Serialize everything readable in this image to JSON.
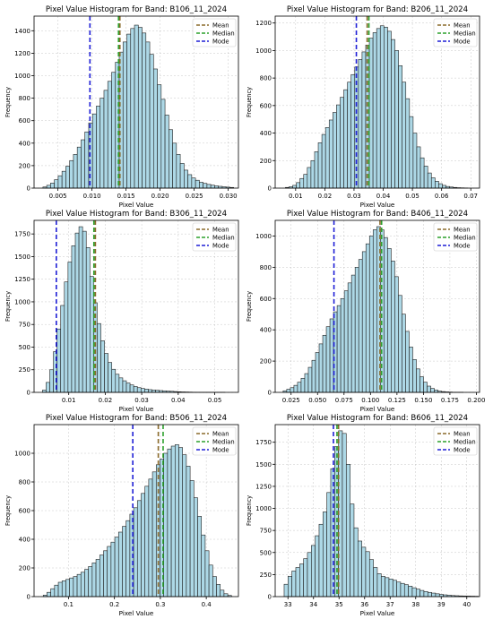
{
  "colors": {
    "bar_fill": "#add8e6",
    "bar_edge": "#1f1f1f",
    "mean": "#d62728",
    "median": "#2ca02c",
    "mode": "#1f1fd6",
    "mean_median_overlap": "#8a6a2a"
  },
  "legend_labels": {
    "mean": "Mean",
    "median": "Median",
    "mode": "Mode"
  },
  "chart_data": [
    {
      "type": "bar",
      "title": "Pixel Value Histogram for Band: B106_11_2024",
      "xlabel": "Pixel Value",
      "ylabel": "Frequency",
      "xlim": [
        0.0015,
        0.0315
      ],
      "ylim": [
        0,
        1530
      ],
      "xticks": [
        0.005,
        0.01,
        0.015,
        0.02,
        0.025,
        0.03
      ],
      "xtick_labels": [
        "0.005",
        "0.010",
        "0.015",
        "0.020",
        "0.025",
        "0.030"
      ],
      "yticks": [
        0,
        200,
        400,
        600,
        800,
        1000,
        1200,
        1400
      ],
      "ytick_labels": [
        "0",
        "200",
        "400",
        "600",
        "800",
        "1000",
        "1200",
        "1400"
      ],
      "bin_start": 0.0028,
      "bin_width": 0.00056,
      "values": [
        10,
        25,
        45,
        75,
        110,
        150,
        195,
        245,
        300,
        365,
        430,
        500,
        580,
        660,
        730,
        800,
        870,
        950,
        1030,
        1120,
        1210,
        1300,
        1370,
        1420,
        1450,
        1430,
        1380,
        1300,
        1190,
        1060,
        920,
        790,
        650,
        520,
        400,
        300,
        220,
        160,
        120,
        90,
        70,
        52,
        42,
        33,
        26,
        20,
        16,
        12,
        9,
        6
      ],
      "mean": 0.0141,
      "median": 0.0139,
      "mode": 0.0097,
      "legend": [
        "Mean",
        "Median",
        "Mode"
      ],
      "legend_position": "top-right",
      "grid": true
    },
    {
      "type": "bar",
      "title": "Pixel Value Histogram for Band: B206_11_2024",
      "xlabel": "Pixel Value",
      "ylabel": "Frequency",
      "xlim": [
        0.003,
        0.073
      ],
      "ylim": [
        0,
        1250
      ],
      "xticks": [
        0.01,
        0.02,
        0.03,
        0.04,
        0.05,
        0.06,
        0.07
      ],
      "xtick_labels": [
        "0.01",
        "0.02",
        "0.03",
        "0.04",
        "0.05",
        "0.06",
        "0.07"
      ],
      "yticks": [
        0,
        200,
        400,
        600,
        800,
        1000,
        1200
      ],
      "ytick_labels": [
        "0",
        "200",
        "400",
        "600",
        "800",
        "1000",
        "1200"
      ],
      "bin_start": 0.0065,
      "bin_width": 0.00125,
      "values": [
        5,
        10,
        20,
        40,
        70,
        100,
        150,
        200,
        265,
        330,
        390,
        440,
        495,
        550,
        605,
        660,
        715,
        770,
        825,
        880,
        935,
        990,
        1040,
        1090,
        1130,
        1160,
        1180,
        1170,
        1140,
        1080,
        1000,
        890,
        770,
        650,
        520,
        400,
        300,
        220,
        160,
        110,
        75,
        50,
        32,
        20,
        12,
        8,
        5,
        3,
        2,
        1
      ],
      "mean": 0.0345,
      "median": 0.0351,
      "mode": 0.0308,
      "legend": [
        "Mean",
        "Median",
        "Mode"
      ],
      "legend_position": "top-right",
      "grid": true
    },
    {
      "type": "bar",
      "title": "Pixel Value Histogram for Band: B306_11_2024",
      "xlabel": "Pixel Value",
      "ylabel": "Frequency",
      "xlim": [
        0.0005,
        0.0565
      ],
      "ylim": [
        0,
        1900
      ],
      "xticks": [
        0.01,
        0.02,
        0.03,
        0.04,
        0.05
      ],
      "xtick_labels": [
        "0.01",
        "0.02",
        "0.03",
        "0.04",
        "0.05"
      ],
      "yticks": [
        0,
        250,
        500,
        750,
        1000,
        1250,
        1500,
        1750
      ],
      "ytick_labels": [
        "0",
        "250",
        "500",
        "750",
        "1000",
        "1250",
        "1500",
        "1750"
      ],
      "bin_start": 0.0028,
      "bin_width": 0.001,
      "values": [
        25,
        110,
        250,
        450,
        700,
        960,
        1220,
        1440,
        1620,
        1760,
        1830,
        1780,
        1600,
        1280,
        990,
        760,
        570,
        430,
        330,
        255,
        200,
        160,
        128,
        103,
        82,
        65,
        52,
        43,
        36,
        30,
        26,
        23,
        20,
        17,
        14,
        12,
        9,
        7,
        5,
        4,
        3,
        2,
        1,
        1,
        1,
        1,
        1,
        1,
        1,
        1
      ],
      "mean": 0.0173,
      "median": 0.0169,
      "mode": 0.0066,
      "legend": [
        "Mean",
        "Median",
        "Mode"
      ],
      "legend_position": "top-right",
      "grid": true
    },
    {
      "type": "bar",
      "title": "Pixel Value Histogram for Band: B406_11_2024",
      "xlabel": "Pixel Value",
      "ylabel": "Frequency",
      "xlim": [
        0.01,
        0.203
      ],
      "ylim": [
        0,
        1100
      ],
      "xticks": [
        0.025,
        0.05,
        0.075,
        0.1,
        0.125,
        0.15,
        0.175,
        0.2
      ],
      "xtick_labels": [
        "0.025",
        "0.050",
        "0.075",
        "0.100",
        "0.125",
        "0.150",
        "0.175",
        "0.200"
      ],
      "yticks": [
        0,
        200,
        400,
        600,
        800,
        1000
      ],
      "ytick_labels": [
        "0",
        "200",
        "400",
        "600",
        "800",
        "1000"
      ],
      "bin_start": 0.0175,
      "bin_width": 0.0034,
      "values": [
        10,
        20,
        30,
        45,
        65,
        90,
        120,
        160,
        205,
        255,
        310,
        365,
        420,
        470,
        515,
        555,
        600,
        650,
        700,
        750,
        800,
        850,
        900,
        950,
        1000,
        1040,
        1060,
        1040,
        990,
        920,
        840,
        740,
        620,
        500,
        390,
        290,
        210,
        150,
        100,
        65,
        40,
        25,
        15,
        8,
        5,
        3,
        2,
        1,
        1,
        1
      ],
      "mean": 0.109,
      "median": 0.1105,
      "mode": 0.0655,
      "legend": [
        "Mean",
        "Median",
        "Mode"
      ],
      "legend_position": "top-right",
      "grid": true
    },
    {
      "type": "bar",
      "title": "Pixel Value Histogram for Band: B506_11_2024",
      "xlabel": "Pixel Value",
      "ylabel": "Frequency",
      "xlim": [
        0.025,
        0.47
      ],
      "ylim": [
        0,
        1200
      ],
      "xticks": [
        0.1,
        0.2,
        0.3,
        0.4
      ],
      "xtick_labels": [
        "0.1",
        "0.2",
        "0.3",
        "0.4"
      ],
      "yticks": [
        0,
        200,
        400,
        600,
        800,
        1000
      ],
      "ytick_labels": [
        "0",
        "200",
        "400",
        "600",
        "800",
        "1000"
      ],
      "bin_start": 0.045,
      "bin_width": 0.0082,
      "values": [
        10,
        30,
        55,
        80,
        100,
        110,
        120,
        130,
        140,
        155,
        170,
        190,
        210,
        235,
        260,
        290,
        320,
        350,
        380,
        415,
        450,
        490,
        530,
        575,
        620,
        670,
        720,
        770,
        820,
        870,
        920,
        960,
        1000,
        1030,
        1050,
        1060,
        1040,
        990,
        910,
        810,
        690,
        560,
        430,
        320,
        220,
        140,
        85,
        45,
        20,
        8
      ],
      "mean": 0.2955,
      "median": 0.306,
      "mode": 0.24,
      "legend": [
        "Mean",
        "Median",
        "Mode"
      ],
      "legend_position": "top-right",
      "grid": true
    },
    {
      "type": "bar",
      "title": "Pixel Value Histogram for Band: B606_11_2024",
      "xlabel": "Pixel Value",
      "ylabel": "Frequency",
      "xlim": [
        32.5,
        40.5
      ],
      "ylim": [
        0,
        1950
      ],
      "xticks": [
        33,
        34,
        35,
        36,
        37,
        38,
        39,
        40
      ],
      "xtick_labels": [
        "33",
        "34",
        "35",
        "36",
        "37",
        "38",
        "39",
        "40"
      ],
      "yticks": [
        0,
        250,
        500,
        750,
        1000,
        1250,
        1500,
        1750
      ],
      "ytick_labels": [
        "0",
        "250",
        "500",
        "750",
        "1000",
        "1250",
        "1500",
        "1750"
      ],
      "bin_start": 32.85,
      "bin_width": 0.152,
      "values": [
        140,
        230,
        290,
        330,
        370,
        430,
        500,
        580,
        690,
        820,
        960,
        1180,
        1450,
        1700,
        1880,
        1850,
        1500,
        1050,
        780,
        630,
        560,
        510,
        420,
        330,
        260,
        230,
        215,
        200,
        185,
        165,
        150,
        135,
        118,
        100,
        85,
        70,
        58,
        48,
        40,
        32,
        25,
        20,
        16,
        12,
        10,
        8,
        7,
        6,
        5,
        4
      ],
      "mean": 34.98,
      "median": 34.92,
      "mode": 34.78,
      "legend": [
        "Mean",
        "Median",
        "Mode"
      ],
      "legend_position": "top-right",
      "grid": true
    }
  ]
}
